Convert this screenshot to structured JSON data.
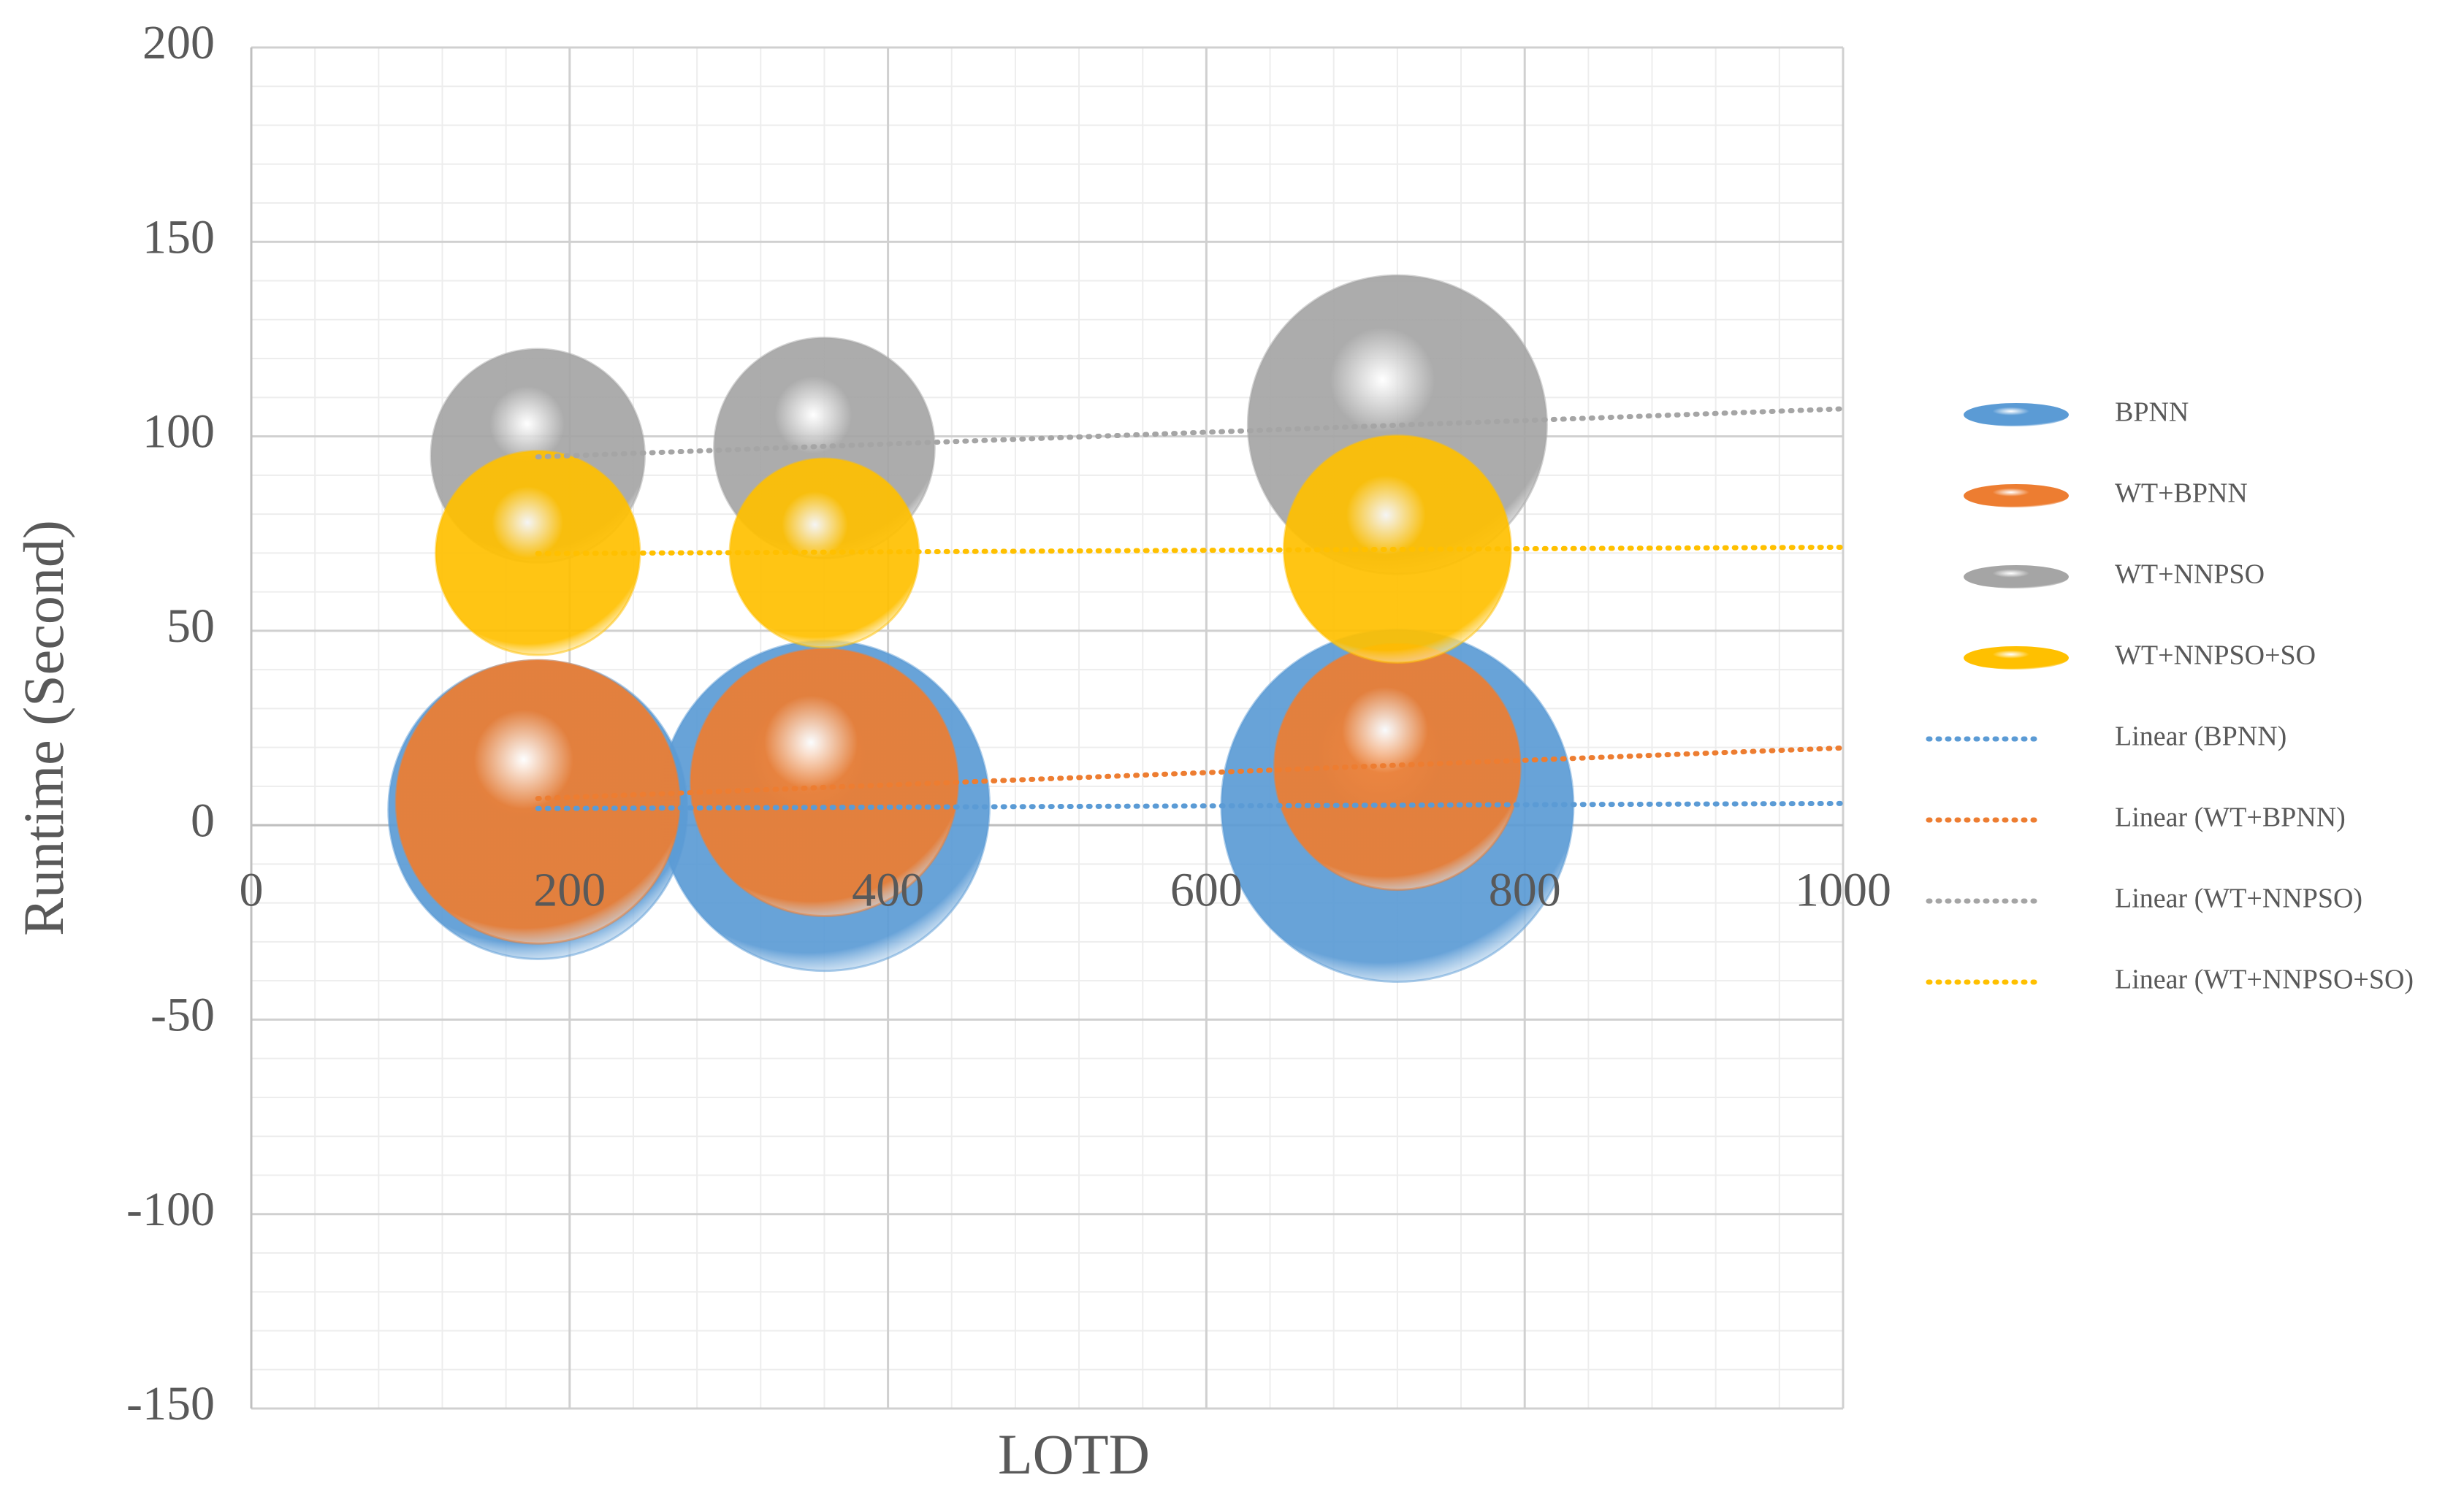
{
  "chart_data": {
    "type": "bubble",
    "xlabel": "LOTD",
    "ylabel": "Runtime (Second)",
    "x": [
      180,
      360,
      720
    ],
    "xlim": [
      0,
      1000
    ],
    "xticks": [
      0,
      200,
      400,
      600,
      800,
      1000
    ],
    "ylim": [
      -150,
      200
    ],
    "yticks": [
      -150,
      -100,
      -50,
      0,
      50,
      100,
      150,
      200
    ],
    "grid": true,
    "minor_grid": true,
    "legend": "right",
    "trendline": "linear",
    "series": [
      {
        "name": "BPNN",
        "trendline_name": "Linear (BPNN)",
        "color": "#5b9bd5",
        "values": [
          4,
          5,
          5
        ],
        "sizes": [
          90,
          110,
          125
        ]
      },
      {
        "name": "WT+BPNN",
        "trendline_name": "Linear (WT+BPNN)",
        "color": "#ed7d31",
        "values": [
          6,
          11,
          15
        ],
        "sizes": [
          81,
          72,
          61
        ]
      },
      {
        "name": "WT+NNPSO",
        "trendline_name": "Linear (WT+NNPSO)",
        "color": "#a5a5a5",
        "values": [
          95,
          97,
          103
        ],
        "sizes": [
          46,
          49,
          90
        ]
      },
      {
        "name": "WT+NNPSO+SO",
        "trendline_name": "Linear (WT+NNPSO+SO)",
        "color": "#ffc000",
        "values": [
          70,
          70,
          71
        ],
        "sizes": [
          42,
          36,
          52
        ]
      }
    ]
  }
}
